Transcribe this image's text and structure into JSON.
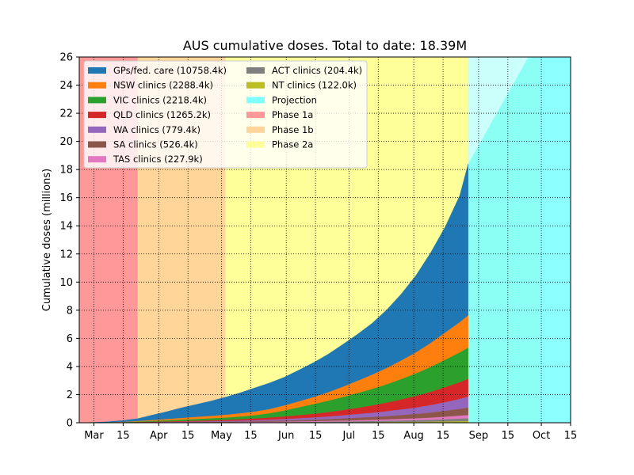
{
  "chart_data": {
    "type": "area",
    "title": "AUS cumulative doses. Total to date: 18.39M",
    "xlabel": "",
    "ylabel": "Cumulative doses (millions)",
    "xlim": [
      "2021-02-22",
      "2021-10-15"
    ],
    "ylim": [
      0,
      26
    ],
    "y_ticks": [
      0,
      2,
      4,
      6,
      8,
      10,
      12,
      14,
      16,
      18,
      20,
      22,
      24,
      26
    ],
    "x_ticks": [
      {
        "date": "2021-03-01",
        "label": "Mar"
      },
      {
        "date": "2021-03-15",
        "label": "15"
      },
      {
        "date": "2021-04-01",
        "label": "Apr"
      },
      {
        "date": "2021-04-15",
        "label": "15"
      },
      {
        "date": "2021-05-01",
        "label": "May"
      },
      {
        "date": "2021-05-15",
        "label": "15"
      },
      {
        "date": "2021-06-01",
        "label": "Jun"
      },
      {
        "date": "2021-06-15",
        "label": "15"
      },
      {
        "date": "2021-07-01",
        "label": "Jul"
      },
      {
        "date": "2021-07-15",
        "label": "15"
      },
      {
        "date": "2021-08-01",
        "label": "Aug"
      },
      {
        "date": "2021-08-15",
        "label": "15"
      },
      {
        "date": "2021-09-01",
        "label": "Sep"
      },
      {
        "date": "2021-09-15",
        "label": "15"
      },
      {
        "date": "2021-10-01",
        "label": "Oct"
      },
      {
        "date": "2021-10-15",
        "label": "15"
      }
    ],
    "grid": true,
    "grid_style": "dotted",
    "legend_position": "top-left",
    "phases": [
      {
        "name": "Phase 1a",
        "start": "2021-02-22",
        "end": "2021-03-22",
        "color": "#ff9999"
      },
      {
        "name": "Phase 1b",
        "start": "2021-03-22",
        "end": "2021-05-03",
        "color": "#ffd599"
      },
      {
        "name": "Phase 2a",
        "start": "2021-05-03",
        "end": "2021-09-30",
        "color": "#ffff99"
      }
    ],
    "projection": {
      "name": "Projection",
      "color": "#7fffff",
      "start": "2021-08-27",
      "end": "2021-10-15",
      "start_value": 18.39,
      "rate_per_day": 0.264
    },
    "dates": [
      "2021-02-22",
      "2021-03-01",
      "2021-03-08",
      "2021-03-15",
      "2021-03-22",
      "2021-03-29",
      "2021-04-05",
      "2021-04-12",
      "2021-04-19",
      "2021-04-26",
      "2021-05-03",
      "2021-05-10",
      "2021-05-17",
      "2021-05-24",
      "2021-05-31",
      "2021-06-07",
      "2021-06-14",
      "2021-06-21",
      "2021-06-28",
      "2021-07-05",
      "2021-07-12",
      "2021-07-19",
      "2021-07-26",
      "2021-08-02",
      "2021-08-09",
      "2021-08-16",
      "2021-08-23",
      "2021-08-27"
    ],
    "series": [
      {
        "name": "GPs/fed. care (10758.4k)",
        "color": "#1f77b4",
        "values": [
          0,
          0.01,
          0.04,
          0.09,
          0.16,
          0.35,
          0.52,
          0.72,
          0.88,
          1.05,
          1.25,
          1.45,
          1.68,
          1.85,
          2.0,
          2.22,
          2.44,
          2.7,
          3.0,
          3.3,
          3.65,
          4.12,
          4.72,
          5.45,
          6.4,
          7.5,
          9.0,
          10.76
        ]
      },
      {
        "name": "NSW clinics (2288.4k)",
        "color": "#ff7f0e",
        "values": [
          0,
          0.004,
          0.01,
          0.02,
          0.04,
          0.06,
          0.09,
          0.12,
          0.15,
          0.17,
          0.2,
          0.23,
          0.26,
          0.3,
          0.36,
          0.42,
          0.5,
          0.6,
          0.73,
          0.87,
          1.01,
          1.16,
          1.32,
          1.5,
          1.7,
          1.93,
          2.15,
          2.29
        ]
      },
      {
        "name": "VIC clinics (2218.4k)",
        "color": "#2ca02c",
        "values": [
          0,
          0.003,
          0.01,
          0.02,
          0.04,
          0.06,
          0.08,
          0.1,
          0.12,
          0.14,
          0.16,
          0.19,
          0.23,
          0.3,
          0.42,
          0.56,
          0.69,
          0.81,
          0.93,
          1.05,
          1.17,
          1.3,
          1.45,
          1.6,
          1.77,
          1.95,
          2.12,
          2.22
        ]
      },
      {
        "name": "QLD clinics (1265.2k)",
        "color": "#d62728",
        "values": [
          0,
          0.002,
          0.006,
          0.012,
          0.02,
          0.03,
          0.04,
          0.05,
          0.06,
          0.07,
          0.08,
          0.1,
          0.12,
          0.15,
          0.18,
          0.22,
          0.26,
          0.31,
          0.37,
          0.44,
          0.52,
          0.61,
          0.71,
          0.82,
          0.94,
          1.07,
          1.19,
          1.27
        ]
      },
      {
        "name": "WA clinics (779.4k)",
        "color": "#9467bd",
        "values": [
          0,
          0.001,
          0.004,
          0.008,
          0.013,
          0.018,
          0.024,
          0.03,
          0.037,
          0.044,
          0.052,
          0.062,
          0.075,
          0.09,
          0.11,
          0.13,
          0.155,
          0.185,
          0.22,
          0.26,
          0.3,
          0.35,
          0.4,
          0.46,
          0.53,
          0.61,
          0.71,
          0.78
        ]
      },
      {
        "name": "SA clinics (526.4k)",
        "color": "#8c564b",
        "values": [
          0,
          0.001,
          0.003,
          0.006,
          0.01,
          0.014,
          0.018,
          0.022,
          0.027,
          0.032,
          0.038,
          0.045,
          0.053,
          0.063,
          0.075,
          0.09,
          0.105,
          0.125,
          0.15,
          0.175,
          0.2,
          0.23,
          0.27,
          0.31,
          0.36,
          0.42,
          0.48,
          0.53
        ]
      },
      {
        "name": "TAS clinics (227.9k)",
        "color": "#e377c2",
        "values": [
          0,
          0.0005,
          0.001,
          0.002,
          0.004,
          0.006,
          0.008,
          0.01,
          0.012,
          0.015,
          0.018,
          0.021,
          0.025,
          0.03,
          0.035,
          0.041,
          0.048,
          0.056,
          0.065,
          0.075,
          0.087,
          0.1,
          0.115,
          0.13,
          0.15,
          0.18,
          0.21,
          0.23
        ]
      },
      {
        "name": "ACT clinics (204.4k)",
        "color": "#7f7f7f",
        "values": [
          0,
          0.0005,
          0.001,
          0.002,
          0.004,
          0.006,
          0.008,
          0.01,
          0.012,
          0.014,
          0.017,
          0.02,
          0.024,
          0.028,
          0.033,
          0.039,
          0.045,
          0.052,
          0.06,
          0.069,
          0.079,
          0.09,
          0.103,
          0.118,
          0.135,
          0.16,
          0.19,
          0.2
        ]
      },
      {
        "name": "NT clinics (122.0k)",
        "color": "#bcbd22",
        "values": [
          0,
          0.0003,
          0.0006,
          0.001,
          0.002,
          0.003,
          0.004,
          0.005,
          0.006,
          0.008,
          0.01,
          0.012,
          0.014,
          0.017,
          0.02,
          0.024,
          0.028,
          0.033,
          0.038,
          0.044,
          0.05,
          0.057,
          0.065,
          0.074,
          0.084,
          0.097,
          0.112,
          0.12
        ]
      }
    ],
    "legend": [
      {
        "label": "GPs/fed. care (10758.4k)",
        "color": "#1f77b4"
      },
      {
        "label": "NSW clinics (2288.4k)",
        "color": "#ff7f0e"
      },
      {
        "label": "VIC clinics (2218.4k)",
        "color": "#2ca02c"
      },
      {
        "label": "QLD clinics (1265.2k)",
        "color": "#d62728"
      },
      {
        "label": "WA clinics (779.4k)",
        "color": "#9467bd"
      },
      {
        "label": "SA clinics (526.4k)",
        "color": "#8c564b"
      },
      {
        "label": "TAS clinics (227.9k)",
        "color": "#e377c2"
      },
      {
        "label": "ACT clinics (204.4k)",
        "color": "#7f7f7f"
      },
      {
        "label": "NT clinics (122.0k)",
        "color": "#bcbd22"
      },
      {
        "label": "Projection",
        "color": "#7fffff"
      },
      {
        "label": "Phase 1a",
        "color": "#ff9999"
      },
      {
        "label": "Phase 1b",
        "color": "#ffd599"
      },
      {
        "label": "Phase 2a",
        "color": "#ffff99"
      }
    ]
  }
}
